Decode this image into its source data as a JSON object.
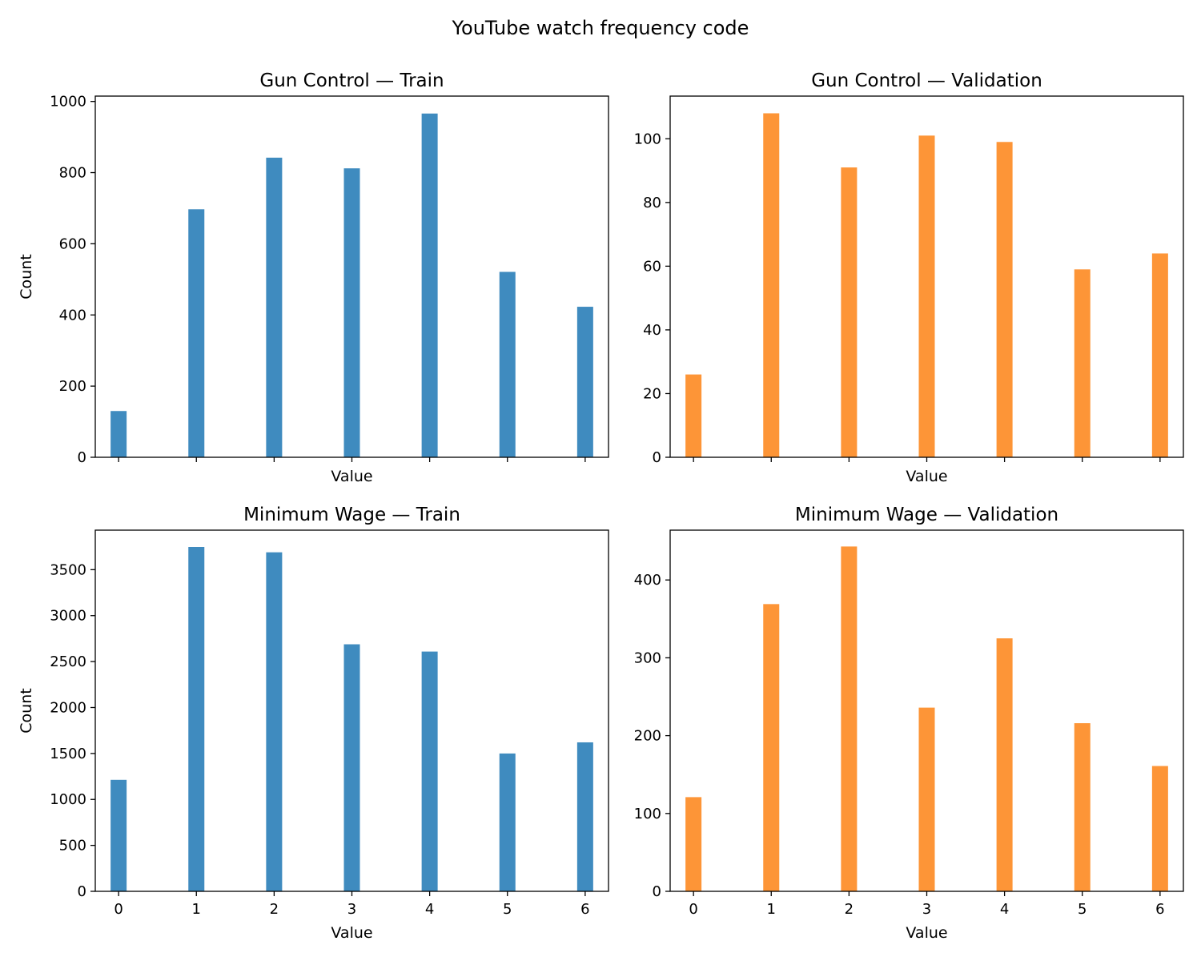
{
  "chart_data": {
    "title": "YouTube watch frequency code",
    "panels": [
      {
        "type": "bar",
        "title": "Gun Control — Train",
        "xlabel": "Value",
        "ylabel": "Count",
        "x": [
          0,
          1,
          2,
          3,
          4,
          5,
          6
        ],
        "values": [
          130,
          697,
          842,
          812,
          966,
          521,
          423
        ],
        "xlim": [
          -0.3,
          6.3
        ],
        "ylim": [
          0,
          1015
        ],
        "yticks": [
          0,
          200,
          400,
          600,
          800,
          1000
        ],
        "xtick_labels_visible": false,
        "color": "#3f8bbf"
      },
      {
        "type": "bar",
        "title": "Gun Control — Validation",
        "xlabel": "Value",
        "ylabel": "",
        "x": [
          0,
          1,
          2,
          3,
          4,
          5,
          6
        ],
        "values": [
          26,
          108,
          91,
          101,
          99,
          59,
          64
        ],
        "xlim": [
          -0.3,
          6.3
        ],
        "ylim": [
          0,
          113.4
        ],
        "yticks": [
          0,
          20,
          40,
          60,
          80,
          100
        ],
        "xtick_labels_visible": false,
        "color": "#fd9537"
      },
      {
        "type": "bar",
        "title": "Minimum Wage — Train",
        "xlabel": "Value",
        "ylabel": "Count",
        "x": [
          0,
          1,
          2,
          3,
          4,
          5,
          6
        ],
        "values": [
          1213,
          3747,
          3689,
          2688,
          2609,
          1500,
          1621
        ],
        "xlim": [
          -0.3,
          6.3
        ],
        "ylim": [
          0,
          3930
        ],
        "yticks": [
          0,
          500,
          1000,
          1500,
          2000,
          2500,
          3000,
          3500
        ],
        "xtick_labels_visible": true,
        "color": "#3f8bbf"
      },
      {
        "type": "bar",
        "title": "Minimum Wage — Validation",
        "xlabel": "Value",
        "ylabel": "",
        "x": [
          0,
          1,
          2,
          3,
          4,
          5,
          6
        ],
        "values": [
          121,
          369,
          443,
          236,
          325,
          216,
          161
        ],
        "xlim": [
          -0.3,
          6.3
        ],
        "ylim": [
          0,
          464
        ],
        "yticks": [
          0,
          100,
          200,
          300,
          400
        ],
        "xtick_labels_visible": true,
        "color": "#fd9537"
      }
    ]
  }
}
